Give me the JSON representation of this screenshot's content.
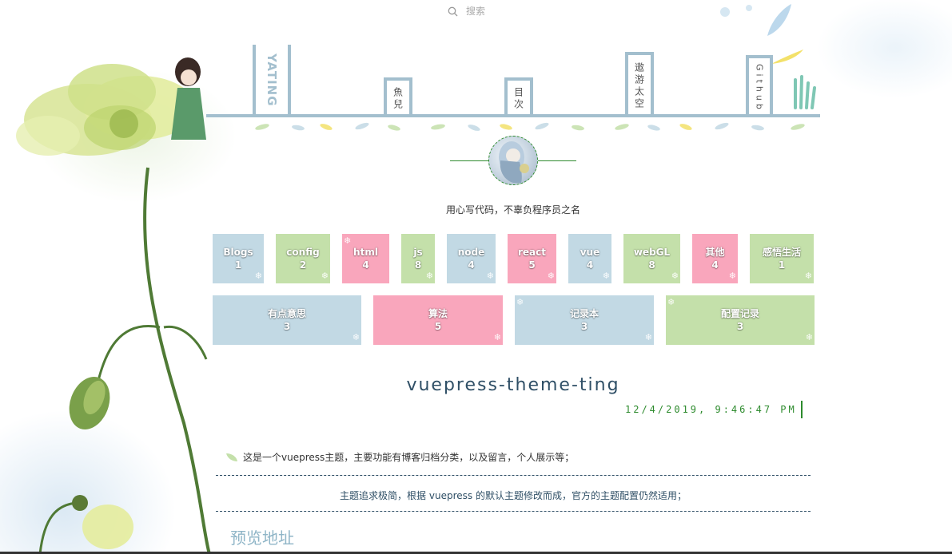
{
  "header": {
    "search": {
      "placeholder": "搜索",
      "icon": "search-icon"
    },
    "brand": "YATING",
    "nav": [
      {
        "label": "魚兒",
        "id": "fish"
      },
      {
        "label": "目次",
        "id": "toc"
      },
      {
        "label": "遨游太空",
        "id": "space"
      },
      {
        "label": "Github",
        "id": "github"
      }
    ]
  },
  "profile": {
    "motto": "用心写代码，不辜负程序员之名"
  },
  "categories_row1": [
    {
      "name": "Blogs",
      "count": "1",
      "color": "blue"
    },
    {
      "name": "config",
      "count": "2",
      "color": "green"
    },
    {
      "name": "html",
      "count": "4",
      "color": "pink"
    },
    {
      "name": "js",
      "count": "8",
      "color": "green"
    },
    {
      "name": "node",
      "count": "4",
      "color": "blue"
    },
    {
      "name": "react",
      "count": "5",
      "color": "pink"
    },
    {
      "name": "vue",
      "count": "4",
      "color": "blue"
    },
    {
      "name": "webGL",
      "count": "8",
      "color": "green"
    },
    {
      "name": "其他",
      "count": "4",
      "color": "pink"
    },
    {
      "name": "感悟生活",
      "count": "1",
      "color": "green"
    }
  ],
  "categories_row2": [
    {
      "name": "有点意思",
      "count": "3",
      "color": "blue"
    },
    {
      "name": "算法",
      "count": "5",
      "color": "pink"
    },
    {
      "name": "记录本",
      "count": "3",
      "color": "blue"
    },
    {
      "name": "配置记录",
      "count": "3",
      "color": "green"
    }
  ],
  "colors": {
    "blue": "#c2d9e4",
    "green": "#c4e0aa",
    "pink": "#f9a6bc",
    "rail": "#a3bfce",
    "accent": "#2e8b2e"
  },
  "content": {
    "title": "vuepress-theme-ting",
    "clock": "12/4/2019, 9:46:47 PM",
    "desc1": "这是一个vuepress主题，主要功能有博客归档分类，以及留言，个人展示等；",
    "desc2": "主题追求极简，根据 vuepress 的默认主题修改而成，官方的主题配置仍然适用；",
    "preview_heading": "预览地址"
  }
}
